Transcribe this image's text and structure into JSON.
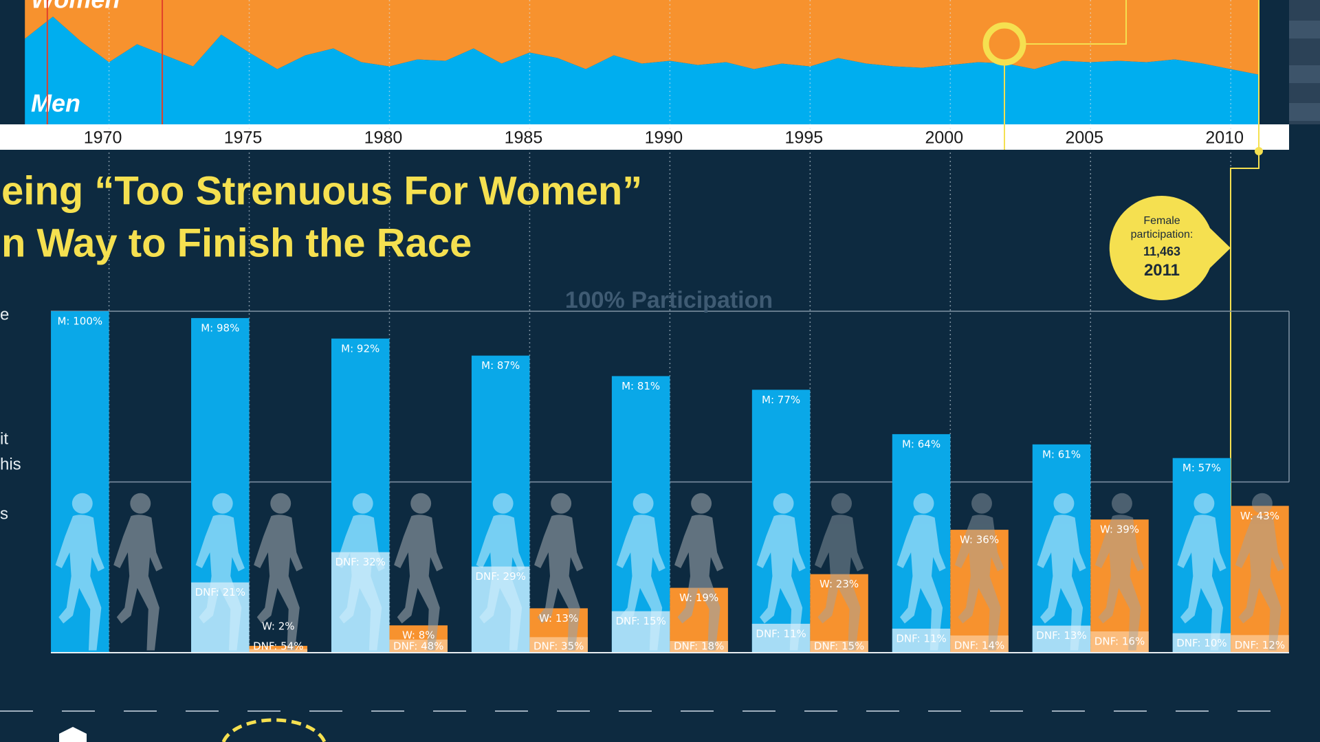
{
  "chart_data": [
    {
      "type": "area",
      "stacked": true,
      "x": [
        1967,
        1968,
        1969,
        1970,
        1971,
        1972,
        1973,
        1974,
        1975,
        1976,
        1977,
        1978,
        1979,
        1980,
        1981,
        1982,
        1983,
        1984,
        1985,
        1986,
        1987,
        1988,
        1989,
        1990,
        1991,
        1992,
        1993,
        1994,
        1995,
        1996,
        1997,
        1998,
        1999,
        2000,
        2001,
        2002,
        2003,
        2004,
        2005,
        2006,
        2007,
        2008,
        2009,
        2010,
        2011
      ],
      "xlim": [
        1967,
        2011
      ],
      "xticks": [
        1970,
        1975,
        1980,
        1985,
        1990,
        1995,
        2000,
        2005,
        2010
      ],
      "ylim": [
        0,
        100
      ],
      "grid": true,
      "series": [
        {
          "name": "Men",
          "color": "#00aeef",
          "values": [
            62,
            78,
            60,
            45,
            58,
            50,
            42,
            65,
            52,
            40,
            50,
            55,
            45,
            42,
            47,
            46,
            55,
            44,
            52,
            48,
            40,
            50,
            44,
            46,
            43,
            45,
            40,
            44,
            42,
            48,
            44,
            42,
            41,
            43,
            45,
            44,
            40,
            46,
            45,
            46,
            45,
            47,
            44,
            40,
            36
          ]
        },
        {
          "name": "Women",
          "color": "#f7922e",
          "values": [
            38,
            22,
            40,
            55,
            42,
            50,
            58,
            35,
            48,
            60,
            50,
            45,
            55,
            58,
            53,
            54,
            38,
            48,
            41,
            44,
            52,
            42,
            48,
            46,
            50,
            47,
            52,
            48,
            50,
            44,
            48,
            50,
            51,
            49,
            47,
            48,
            52,
            46,
            47,
            46,
            47,
            45,
            48,
            52,
            56
          ]
        }
      ]
    },
    {
      "type": "bar",
      "title": [
        "eing “Too Strenuous For Women”",
        "n Way to Finish the Race"
      ],
      "side_text": [
        "e",
        "it",
        "his",
        "s"
      ],
      "x": [
        1970,
        1975,
        1980,
        1985,
        1990,
        1995,
        2000,
        2005,
        2010
      ],
      "ylim": [
        0,
        100
      ],
      "yticks": [
        {
          "value": 100,
          "label": "100% Participation"
        }
      ],
      "grid_values": [
        50
      ],
      "series": [
        {
          "color": "#0aa8e8",
          "values": [
            100,
            98,
            92,
            87,
            81,
            77,
            64,
            61,
            57
          ],
          "value_labels": [
            "M: 100%",
            "M: 98%",
            "M: 92%",
            "M: 87%",
            "M: 81%",
            "M: 77%",
            "M: 64%",
            "M: 61%",
            "M: 57%"
          ]
        },
        {
          "color": "#a6dcf5",
          "values": [
            null,
            21,
            32,
            29,
            15,
            11,
            11,
            13,
            10
          ],
          "value_labels": [
            null,
            "DNF: 21%",
            "DNF: 32%",
            "DNF: 29%",
            "DNF: 15%",
            "DNF: 11%",
            "DNF: 11%",
            "DNF: 13%",
            "DNF: 10%"
          ]
        },
        {
          "color": "#f7922e",
          "values": [
            null,
            2,
            8,
            13,
            19,
            23,
            36,
            39,
            43
          ],
          "value_labels": [
            null,
            "W: 2%",
            "W: 8%",
            "W: 13%",
            "W: 19%",
            "W: 23%",
            "W: 36%",
            "W: 39%",
            "W: 43%"
          ]
        },
        {
          "color": "#fbbd7e",
          "values": [
            null,
            54,
            48,
            35,
            18,
            15,
            14,
            16,
            12
          ],
          "value_labels": [
            null,
            "DNF: 54%",
            "DNF: 48%",
            "DNF: 35%",
            "DNF: 18%",
            "DNF: 15%",
            "DNF: 14%",
            "DNF: 16%",
            "DNF: 12%"
          ]
        }
      ],
      "annotation": {
        "text": "Female participation:",
        "value": "11,463",
        "year": "2011"
      }
    }
  ]
}
